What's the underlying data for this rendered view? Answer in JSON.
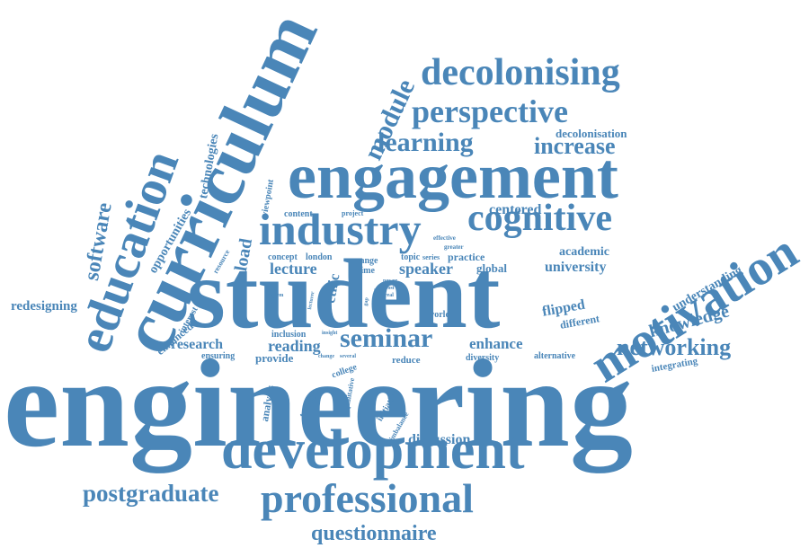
{
  "color": "#4a86b8",
  "words": {
    "engineering": "engineering",
    "student": "student",
    "curriculum": "curriculum",
    "engagement": "engagement",
    "development": "development",
    "motivation": "motivation",
    "education": "education",
    "industry": "industry",
    "cognitive": "cognitive",
    "seminar": "seminar",
    "professional": "professional",
    "decolonising": "decolonising",
    "perspective": "perspective",
    "learning": "learning",
    "increase": "increase",
    "module": "module",
    "networking": "networking",
    "postgraduate": "postgraduate",
    "questionnaire": "questionnaire",
    "software": "software",
    "knowledge": "knowledge",
    "decolonisation": "decolonisation",
    "centered": "centered",
    "speaker": "speaker",
    "lecture": "lecture",
    "reading": "reading",
    "enhance": "enhance",
    "university": "university",
    "academic": "academic",
    "understanding": "understanding",
    "flipped": "flipped",
    "different": "different",
    "research": "research",
    "redesigning": "redesigning",
    "technologies": "technologies",
    "opportunities": "opportunities",
    "load": "load",
    "ethic": "ethic",
    "global": "global",
    "practice": "practice",
    "alternative": "alternative",
    "integrating": "integrating",
    "discussion": "discussion",
    "provide": "provide",
    "ensuring": "ensuring",
    "enhanced": "enhanced",
    "interest": "interest",
    "analysis": "analysis",
    "teaching": "teaching",
    "reduce": "reduce",
    "diversity": "diversity",
    "college": "college",
    "initiative": "initiative",
    "imbalance": "imbalance",
    "world": "world",
    "viewpoint": "viewpoint",
    "content": "content",
    "project": "project",
    "concept": "concept",
    "london": "london",
    "range": "range",
    "time": "time",
    "topic": "topic",
    "series": "series",
    "effective": "effective",
    "greater": "greater",
    "resource": "resource",
    "system": "system",
    "current": "current",
    "lecturer": "lecturer",
    "inclusion": "inclusion",
    "insight": "insight",
    "change": "change",
    "several": "several",
    "qualitative": "qualitative",
    "list": "list",
    "more": "more",
    "power": "power",
    "real": "real",
    "post": "post",
    "work": "work",
    "gap": "gap"
  }
}
